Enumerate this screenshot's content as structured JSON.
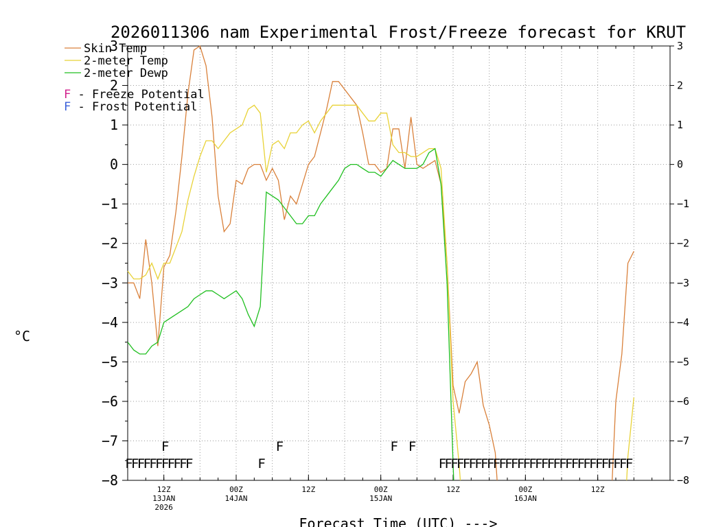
{
  "chart_data": {
    "type": "line",
    "title": "2026011306 nam Experimental Frost/Freeze forecast for KRUT",
    "xlabel": "Forecast Time (UTC) --->",
    "ylabel": "°C",
    "xlim": [
      6,
      96
    ],
    "ylim": [
      -8,
      3
    ],
    "y_ticks": [
      3,
      2,
      1,
      0,
      -1,
      -2,
      -3,
      -4,
      -5,
      -6,
      -7,
      -8
    ],
    "x_ticks": [
      {
        "x": 12,
        "line1": "12Z",
        "line2": "13JAN",
        "line3": "2026"
      },
      {
        "x": 24,
        "line1": "00Z",
        "line2": "14JAN",
        "line3": ""
      },
      {
        "x": 36,
        "line1": "12Z",
        "line2": "",
        "line3": ""
      },
      {
        "x": 48,
        "line1": "00Z",
        "line2": "15JAN",
        "line3": ""
      },
      {
        "x": 60,
        "line1": "12Z",
        "line2": "",
        "line3": ""
      },
      {
        "x": 72,
        "line1": "00Z",
        "line2": "16JAN",
        "line3": ""
      },
      {
        "x": 84,
        "line1": "12Z",
        "line2": "",
        "line3": ""
      }
    ],
    "grid": true,
    "legend_position": "top-left",
    "series": [
      {
        "name": "Skin Temp",
        "color": "#d9803a",
        "points": [
          [
            6,
            -3.0
          ],
          [
            7,
            -3.0
          ],
          [
            8,
            -3.4
          ],
          [
            9,
            -1.9
          ],
          [
            10,
            -3.0
          ],
          [
            11,
            -4.6
          ],
          [
            12,
            -2.6
          ],
          [
            13,
            -2.3
          ],
          [
            14,
            -1.2
          ],
          [
            15,
            0.2
          ],
          [
            16,
            1.8
          ],
          [
            17,
            2.9
          ],
          [
            18,
            3.0
          ],
          [
            19,
            2.5
          ],
          [
            20,
            1.2
          ],
          [
            21,
            -0.8
          ],
          [
            22,
            -1.7
          ],
          [
            23,
            -1.5
          ],
          [
            24,
            -0.4
          ],
          [
            25,
            -0.5
          ],
          [
            26,
            -0.1
          ],
          [
            27,
            0.0
          ],
          [
            28,
            0.0
          ],
          [
            29,
            -0.4
          ],
          [
            30,
            -0.1
          ],
          [
            31,
            -0.4
          ],
          [
            32,
            -1.4
          ],
          [
            33,
            -0.8
          ],
          [
            34,
            -1.0
          ],
          [
            35,
            -0.5
          ],
          [
            36,
            0.0
          ],
          [
            37,
            0.2
          ],
          [
            38,
            0.8
          ],
          [
            39,
            1.4
          ],
          [
            40,
            2.1
          ],
          [
            41,
            2.1
          ],
          [
            42,
            1.9
          ],
          [
            43,
            1.7
          ],
          [
            44,
            1.5
          ],
          [
            45,
            0.8
          ],
          [
            46,
            0.0
          ],
          [
            47,
            0.0
          ],
          [
            48,
            -0.2
          ],
          [
            49,
            -0.1
          ],
          [
            50,
            0.9
          ],
          [
            51,
            0.9
          ],
          [
            52,
            -0.1
          ],
          [
            53,
            1.2
          ],
          [
            54,
            0.0
          ],
          [
            55,
            -0.1
          ],
          [
            56,
            0.0
          ],
          [
            57,
            0.1
          ],
          [
            58,
            -0.5
          ],
          [
            59,
            -2.5
          ],
          [
            60,
            -5.6
          ],
          [
            61,
            -6.3
          ],
          [
            62,
            -5.5
          ],
          [
            63,
            -5.3
          ],
          [
            64,
            -5.0
          ],
          [
            65,
            -6.1
          ],
          [
            66,
            -6.6
          ],
          [
            67,
            -7.3
          ],
          [
            67.3,
            -8
          ]
        ],
        "points2": [
          [
            86.4,
            -8
          ],
          [
            87,
            -6.0
          ],
          [
            88,
            -4.8
          ],
          [
            89,
            -2.5
          ],
          [
            90,
            -2.2
          ]
        ]
      },
      {
        "name": "2-meter Temp",
        "color": "#e8d236",
        "points": [
          [
            6,
            -2.7
          ],
          [
            7,
            -2.9
          ],
          [
            8,
            -2.9
          ],
          [
            9,
            -2.8
          ],
          [
            10,
            -2.5
          ],
          [
            11,
            -2.9
          ],
          [
            12,
            -2.5
          ],
          [
            13,
            -2.5
          ],
          [
            14,
            -2.1
          ],
          [
            15,
            -1.7
          ],
          [
            16,
            -0.9
          ],
          [
            17,
            -0.3
          ],
          [
            18,
            0.2
          ],
          [
            19,
            0.6
          ],
          [
            20,
            0.6
          ],
          [
            21,
            0.4
          ],
          [
            22,
            0.6
          ],
          [
            23,
            0.8
          ],
          [
            24,
            0.9
          ],
          [
            25,
            1.0
          ],
          [
            26,
            1.4
          ],
          [
            27,
            1.5
          ],
          [
            28,
            1.3
          ],
          [
            29,
            -0.2
          ],
          [
            30,
            0.5
          ],
          [
            31,
            0.6
          ],
          [
            32,
            0.4
          ],
          [
            33,
            0.8
          ],
          [
            34,
            0.8
          ],
          [
            35,
            1.0
          ],
          [
            36,
            1.1
          ],
          [
            37,
            0.8
          ],
          [
            38,
            1.1
          ],
          [
            39,
            1.3
          ],
          [
            40,
            1.5
          ],
          [
            41,
            1.5
          ],
          [
            42,
            1.5
          ],
          [
            43,
            1.5
          ],
          [
            44,
            1.5
          ],
          [
            45,
            1.3
          ],
          [
            46,
            1.1
          ],
          [
            47,
            1.1
          ],
          [
            48,
            1.3
          ],
          [
            49,
            1.3
          ],
          [
            50,
            0.5
          ],
          [
            51,
            0.3
          ],
          [
            52,
            0.3
          ],
          [
            53,
            0.2
          ],
          [
            54,
            0.2
          ],
          [
            55,
            0.3
          ],
          [
            56,
            0.4
          ],
          [
            57,
            0.4
          ],
          [
            58,
            -0.1
          ],
          [
            59,
            -2.5
          ],
          [
            60,
            -6.0
          ],
          [
            61,
            -7.6
          ],
          [
            61.2,
            -8
          ]
        ],
        "points2": [
          [
            88.8,
            -8
          ],
          [
            89,
            -7.4
          ],
          [
            90,
            -5.9
          ]
        ]
      },
      {
        "name": "2-meter Dewp",
        "color": "#1fbf1f",
        "points": [
          [
            6,
            -4.5
          ],
          [
            7,
            -4.7
          ],
          [
            8,
            -4.8
          ],
          [
            9,
            -4.8
          ],
          [
            10,
            -4.6
          ],
          [
            11,
            -4.5
          ],
          [
            12,
            -4.0
          ],
          [
            13,
            -3.9
          ],
          [
            14,
            -3.8
          ],
          [
            15,
            -3.7
          ],
          [
            16,
            -3.6
          ],
          [
            17,
            -3.4
          ],
          [
            18,
            -3.3
          ],
          [
            19,
            -3.2
          ],
          [
            20,
            -3.2
          ],
          [
            21,
            -3.3
          ],
          [
            22,
            -3.4
          ],
          [
            23,
            -3.3
          ],
          [
            24,
            -3.2
          ],
          [
            25,
            -3.4
          ],
          [
            26,
            -3.8
          ],
          [
            27,
            -4.1
          ],
          [
            28,
            -3.6
          ],
          [
            29,
            -0.7
          ],
          [
            30,
            -0.8
          ],
          [
            31,
            -0.9
          ],
          [
            32,
            -1.1
          ],
          [
            33,
            -1.3
          ],
          [
            34,
            -1.5
          ],
          [
            35,
            -1.5
          ],
          [
            36,
            -1.3
          ],
          [
            37,
            -1.3
          ],
          [
            38,
            -1.0
          ],
          [
            39,
            -0.8
          ],
          [
            40,
            -0.6
          ],
          [
            41,
            -0.4
          ],
          [
            42,
            -0.1
          ],
          [
            43,
            0.0
          ],
          [
            44,
            0.0
          ],
          [
            45,
            -0.1
          ],
          [
            46,
            -0.2
          ],
          [
            47,
            -0.2
          ],
          [
            48,
            -0.3
          ],
          [
            49,
            -0.1
          ],
          [
            50,
            0.1
          ],
          [
            51,
            0.0
          ],
          [
            52,
            -0.1
          ],
          [
            53,
            -0.1
          ],
          [
            54,
            -0.1
          ],
          [
            55,
            0.0
          ],
          [
            56,
            0.3
          ],
          [
            57,
            0.4
          ],
          [
            58,
            -0.5
          ],
          [
            59,
            -3.0
          ],
          [
            60,
            -7.6
          ],
          [
            60.1,
            -8
          ]
        ]
      }
    ],
    "potential_legend": [
      {
        "letter": "F",
        "text": " - Freeze Potential",
        "color": "#d11f8c"
      },
      {
        "letter": "F",
        "text": " - Frost Potential",
        "color": "#3a5fd9"
      }
    ],
    "frost_marks": [
      12,
      31,
      50,
      53
    ],
    "freeze_marks": [
      6,
      7,
      8,
      9,
      10,
      11,
      12,
      13,
      14,
      15,
      16,
      28,
      58,
      59,
      60,
      61,
      62,
      63,
      64,
      65,
      66,
      67,
      68,
      69,
      70,
      71,
      72,
      73,
      74,
      75,
      76,
      77,
      78,
      79,
      80,
      81,
      82,
      83,
      84,
      85,
      86,
      87,
      88,
      89
    ],
    "marker_letter": "F"
  }
}
